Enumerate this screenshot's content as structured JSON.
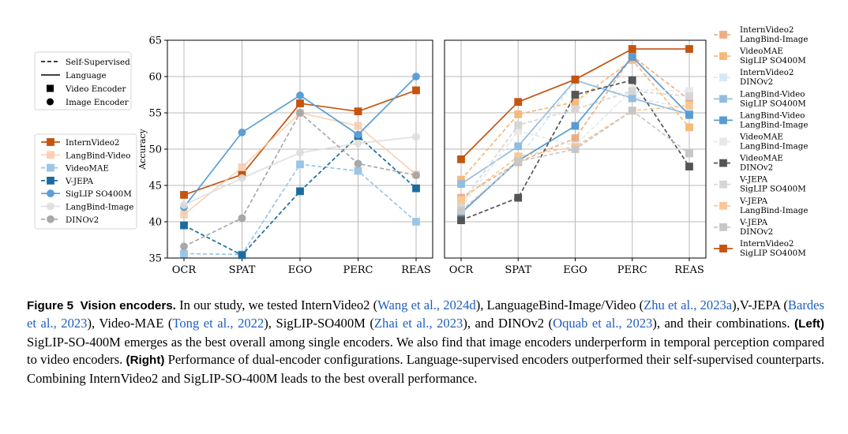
{
  "legend_style": {
    "items": [
      {
        "label": "Self-Supervised",
        "kind": "dashed-line"
      },
      {
        "label": "Language",
        "kind": "solid-line"
      },
      {
        "label": "Video Encoder",
        "kind": "square"
      },
      {
        "label": "Image Encoder",
        "kind": "circle"
      }
    ]
  },
  "chart_data": [
    {
      "type": "line",
      "panel": "left",
      "categories": [
        "OCR",
        "SPAT",
        "EGO",
        "PERC",
        "REAS"
      ],
      "ylabel": "Accuracy",
      "ylim": [
        35,
        65
      ],
      "yticks": [
        35,
        40,
        45,
        50,
        55,
        60,
        65
      ],
      "grid": true,
      "legend_position": "left",
      "series": [
        {
          "name": "InternVideo2",
          "color": "#c4540f",
          "dashed": false,
          "marker": "square",
          "alpha": 1.0,
          "values": [
            43.7,
            46.5,
            56.3,
            55.2,
            58.1
          ]
        },
        {
          "name": "LangBind-Video",
          "color": "#f8c9a6",
          "dashed": false,
          "marker": "square",
          "alpha": 0.8,
          "values": [
            41.0,
            47.5,
            55.0,
            53.2,
            46.5
          ]
        },
        {
          "name": "VideoMAE",
          "color": "#9bc6e6",
          "dashed": true,
          "marker": "square",
          "alpha": 1.0,
          "values": [
            35.6,
            35.5,
            47.9,
            47.0,
            40.0
          ]
        },
        {
          "name": "V-JEPA",
          "color": "#1e6c9e",
          "dashed": true,
          "marker": "square",
          "alpha": 1.0,
          "values": [
            39.5,
            35.4,
            44.2,
            51.8,
            44.6
          ]
        },
        {
          "name": "SigLIP SO400M",
          "color": "#5b9fd4",
          "dashed": false,
          "marker": "circle",
          "alpha": 1.0,
          "values": [
            42.0,
            52.3,
            57.4,
            52.0,
            60.0
          ]
        },
        {
          "name": "LangBind-Image",
          "color": "#dedede",
          "dashed": false,
          "marker": "circle",
          "alpha": 0.9,
          "values": [
            42.3,
            46.0,
            49.5,
            50.8,
            51.7
          ]
        },
        {
          "name": "DINOv2",
          "color": "#a8a8a8",
          "dashed": true,
          "marker": "circle",
          "alpha": 1.0,
          "values": [
            36.6,
            40.5,
            55.0,
            48.0,
            46.4
          ]
        }
      ]
    },
    {
      "type": "line",
      "panel": "right",
      "categories": [
        "OCR",
        "SPAT",
        "EGO",
        "PERC",
        "REAS"
      ],
      "ylim": [
        35,
        65
      ],
      "grid": true,
      "legend_position": "right",
      "series": [
        {
          "name": "InternVideo2\nLangBind-Image",
          "color": "#e9a77b",
          "dashed": true,
          "marker": "square",
          "alpha": 0.9,
          "values": [
            43.3,
            48.2,
            51.5,
            62.8,
            56.8
          ]
        },
        {
          "name": "VideoMAE\nSigLIP SO400M",
          "color": "#f6b97a",
          "dashed": true,
          "marker": "square",
          "alpha": 1.0,
          "values": [
            45.8,
            54.8,
            56.5,
            62.3,
            53.0
          ]
        },
        {
          "name": "InternVideo2\nDINOv2",
          "color": "#d7e8f6",
          "dashed": true,
          "marker": "square",
          "alpha": 1.0,
          "values": [
            41.2,
            48.6,
            59.5,
            57.2,
            55.5
          ]
        },
        {
          "name": "LangBind-Video\nSigLIP SO400M",
          "color": "#93bde0",
          "dashed": false,
          "marker": "square",
          "alpha": 1.0,
          "values": [
            45.2,
            50.4,
            59.5,
            57.0,
            54.8
          ]
        },
        {
          "name": "LangBind-Video\nLangBind-Image",
          "color": "#5a9bd2",
          "dashed": false,
          "marker": "square",
          "alpha": 1.0,
          "values": [
            41.2,
            48.4,
            53.2,
            62.7,
            54.7
          ]
        },
        {
          "name": "VideoMAE\nLangBind-Image",
          "color": "#e8e8e8",
          "dashed": true,
          "marker": "square",
          "alpha": 1.0,
          "values": [
            42.0,
            52.5,
            50.5,
            58.2,
            58.0
          ]
        },
        {
          "name": "VideoMAE\nDINOv2",
          "color": "#555555",
          "dashed": true,
          "marker": "square",
          "alpha": 1.0,
          "values": [
            40.2,
            43.3,
            57.5,
            59.5,
            47.6
          ]
        },
        {
          "name": "V-JEPA\nSigLIP SO400M",
          "color": "#d6d6d6",
          "dashed": true,
          "marker": "square",
          "alpha": 1.0,
          "values": [
            42.5,
            53.3,
            55.5,
            58.0,
            57.3
          ]
        },
        {
          "name": "V-JEPA\nLangBind-Image",
          "color": "#f8c797",
          "dashed": true,
          "marker": "square",
          "alpha": 1.0,
          "values": [
            43.0,
            49.0,
            50.3,
            55.3,
            56.0
          ]
        },
        {
          "name": "V-JEPA\nDINOv2",
          "color": "#c7c7c7",
          "dashed": true,
          "marker": "square",
          "alpha": 1.0,
          "values": [
            41.5,
            48.3,
            50.0,
            55.3,
            49.4
          ]
        },
        {
          "name": "InternVideo2\nSigLIP SO400M",
          "color": "#c4540f",
          "dashed": false,
          "marker": "square",
          "alpha": 1.0,
          "values": [
            48.6,
            56.5,
            59.6,
            63.8,
            63.8
          ]
        }
      ]
    }
  ],
  "caption": {
    "label": "Figure 5",
    "heading": "Vision encoders.",
    "seg1": " In our study, we tested InternVideo2 (",
    "cite1": "Wang et al., 2024d",
    "seg2": "), LanguageBind-Image/Video (",
    "cite2": "Zhu et al., 2023a",
    "seg3": "),V-JEPA (",
    "cite3": "Bardes et al., 2023",
    "seg4": "), Video-MAE (",
    "cite4": "Tong et al., 2022",
    "seg5": "), SigLIP-SO400M (",
    "cite5": "Zhai et al., 2023",
    "seg6": "), and DINOv2 (",
    "cite6": "Oquab et al., 2023",
    "seg7": "), and their combinations. ",
    "left_label": "(Left)",
    "seg8": " SigLIP-SO-400M emerges as the best overall among single encoders. We also find that image encoders underperform in temporal perception compared to video encoders. ",
    "right_label": "(Right)",
    "seg9": " Performance of dual-encoder configurations. Language-supervised encoders outperformed their self-supervised counterparts. Combining InternVideo2 and SigLIP-SO-400M leads to the best overall performance."
  }
}
